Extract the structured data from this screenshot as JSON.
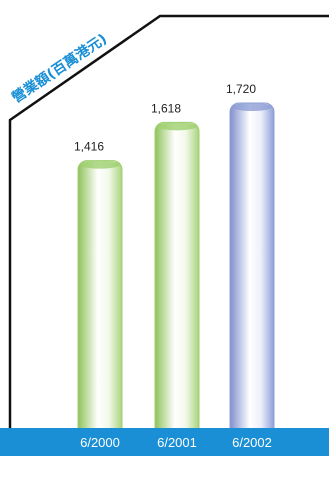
{
  "chart_data": {
    "type": "bar",
    "title": "營業額(百萬港元)",
    "categories": [
      "6/2000",
      "6/2001",
      "6/2002"
    ],
    "values": [
      1416,
      1618,
      1720
    ],
    "value_labels": [
      "1,416",
      "1,618",
      "1,720"
    ],
    "ylim": [
      0,
      1720
    ],
    "grid": false,
    "legend": "none",
    "bar_colors": [
      "#9fcf6f",
      "#9fcf6f",
      "#8f9fd6"
    ],
    "axis_band_color": "#1a8fd6",
    "frame_color": "#111111"
  }
}
